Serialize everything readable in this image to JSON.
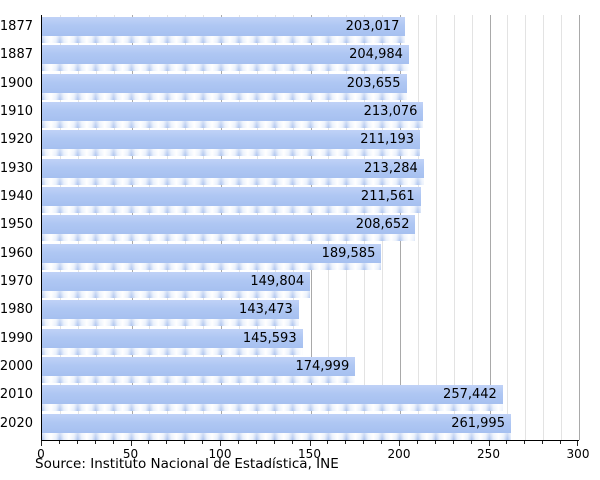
{
  "chart_data": {
    "type": "bar",
    "orientation": "horizontal",
    "title": "",
    "xlabel": "",
    "ylabel": "",
    "categories": [
      "1877",
      "1887",
      "1900",
      "1910",
      "1920",
      "1930",
      "1940",
      "1950",
      "1960",
      "1970",
      "1980",
      "1990",
      "2000",
      "2010",
      "2020"
    ],
    "values": [
      203017,
      204984,
      203655,
      213076,
      211193,
      213284,
      211561,
      208652,
      189585,
      149804,
      143473,
      145593,
      174999,
      257442,
      261995
    ],
    "value_labels": [
      "203,017",
      "204,984",
      "203,655",
      "213,076",
      "211,193",
      "213,284",
      "211,561",
      "208,652",
      "189,585",
      "149,804",
      "143,473",
      "145,593",
      "174,999",
      "257,442",
      "261,995"
    ],
    "xlim": [
      0,
      300
    ],
    "x_ticks": [
      0,
      50,
      100,
      150,
      200,
      250,
      300
    ],
    "x_tick_labels": [
      "0",
      "50",
      "100",
      "150",
      "200",
      "250",
      "300"
    ],
    "x_minor_step": 10,
    "grid": "vertical",
    "legend": "none",
    "colors": {
      "bar": "#aec6f3",
      "gridline_minor": "#e3e3e3",
      "gridline_major": "#a9a9a9",
      "axis": "#000000",
      "text": "#000000"
    }
  },
  "footer": {
    "source": "Source: Instituto Nacional de Estadística, INE"
  }
}
